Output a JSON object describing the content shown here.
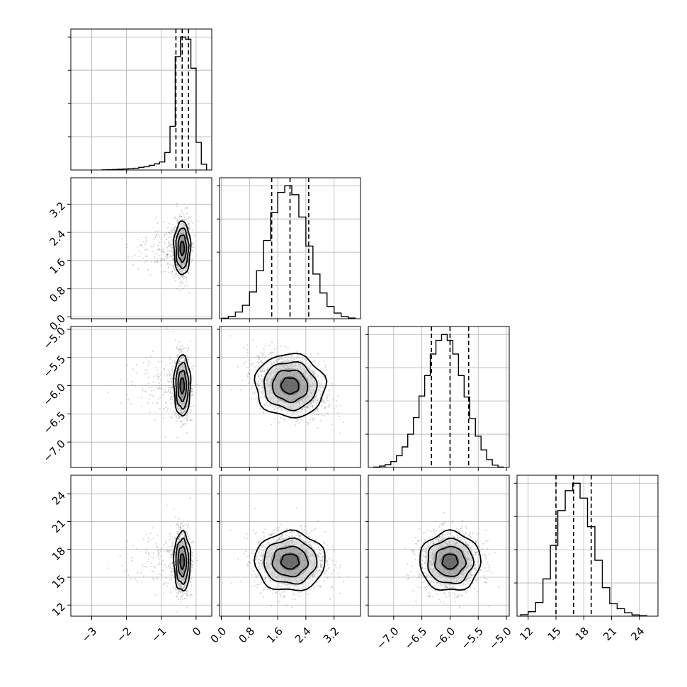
{
  "chart_data": {
    "type": "corner",
    "parameters": [
      {
        "xlim": [
          -3.6,
          0.45
        ],
        "ticks": [
          -3,
          -2,
          -1,
          0
        ],
        "tick_labels": [
          "−3",
          "−2",
          "−1",
          "0"
        ],
        "histogram": {
          "edges": [
            -2.7,
            -2.55,
            -2.4,
            -2.25,
            -2.1,
            -1.95,
            -1.8,
            -1.65,
            -1.5,
            -1.35,
            -1.2,
            -1.05,
            -0.9,
            -0.75,
            -0.6,
            -0.45,
            -0.3,
            -0.15,
            0.0,
            0.15,
            0.3
          ],
          "counts": [
            1,
            2,
            3,
            5,
            7,
            9,
            12,
            18,
            22,
            32,
            42,
            55,
            120,
            300,
            780,
            915,
            900,
            700,
            190,
            40
          ]
        },
        "quantiles": [
          -0.58,
          -0.4,
          -0.22
        ]
      },
      {
        "xlim": [
          -0.05,
          3.95
        ],
        "ticks": [
          0.0,
          0.8,
          1.6,
          2.4,
          3.2
        ],
        "tick_labels": [
          "0.0",
          "0.8",
          "1.6",
          "2.4",
          "3.2"
        ],
        "histogram": {
          "edges": [
            0.0,
            0.2,
            0.4,
            0.6,
            0.8,
            1.0,
            1.2,
            1.4,
            1.6,
            1.8,
            2.0,
            2.2,
            2.4,
            2.6,
            2.8,
            3.0,
            3.2,
            3.4,
            3.6,
            3.8
          ],
          "counts": [
            2,
            10,
            30,
            60,
            120,
            215,
            350,
            475,
            565,
            595,
            555,
            455,
            325,
            200,
            115,
            55,
            25,
            10,
            3
          ]
        },
        "quantiles": [
          1.43,
          1.95,
          2.48
        ]
      },
      {
        "xlim": [
          -7.45,
          -4.95
        ],
        "ticks": [
          -7.0,
          -6.5,
          -6.0,
          -5.5,
          -5.0
        ],
        "tick_labels": [
          "−7.0",
          "−6.5",
          "−6.0",
          "−5.5",
          "−5.0"
        ],
        "histogram": {
          "edges": [
            -7.35,
            -7.25,
            -7.15,
            -7.05,
            -6.95,
            -6.85,
            -6.75,
            -6.65,
            -6.55,
            -6.45,
            -6.35,
            -6.25,
            -6.15,
            -6.05,
            -5.95,
            -5.85,
            -5.75,
            -5.65,
            -5.55,
            -5.45,
            -5.35,
            -5.25,
            -5.15,
            -5.05
          ],
          "counts": [
            2,
            7,
            14,
            30,
            60,
            105,
            170,
            255,
            365,
            470,
            580,
            650,
            680,
            650,
            580,
            470,
            360,
            250,
            160,
            90,
            40,
            12,
            2
          ]
        },
        "quantiles": [
          -6.33,
          -6.0,
          -5.67
        ]
      },
      {
        "xlim": [
          10.8,
          26.0
        ],
        "ticks": [
          12,
          15,
          18,
          21,
          24
        ],
        "tick_labels": [
          "12",
          "15",
          "18",
          "21",
          "24"
        ],
        "histogram": {
          "edges": [
            11.2,
            12.0,
            12.8,
            13.6,
            14.4,
            15.2,
            16.0,
            16.8,
            17.6,
            18.4,
            19.2,
            20.0,
            20.8,
            21.6,
            22.4,
            23.2,
            24.0,
            24.8
          ],
          "counts": [
            6,
            18,
            55,
            150,
            285,
            425,
            505,
            535,
            475,
            360,
            225,
            115,
            50,
            30,
            14,
            5,
            2
          ]
        },
        "quantiles": [
          15.0,
          16.9,
          18.8
        ]
      }
    ],
    "pairs": [
      {
        "row": 1,
        "col": 0,
        "mean": [
          -0.4,
          1.95
        ],
        "sd": [
          0.12,
          0.38
        ],
        "rho": 0.0
      },
      {
        "row": 2,
        "col": 0,
        "mean": [
          -0.4,
          -6.0
        ],
        "sd": [
          0.12,
          0.27
        ],
        "rho": 0.0
      },
      {
        "row": 2,
        "col": 1,
        "mean": [
          1.95,
          -6.0
        ],
        "sd": [
          0.5,
          0.28
        ],
        "rho": -0.35
      },
      {
        "row": 3,
        "col": 0,
        "mean": [
          -0.4,
          16.7
        ],
        "sd": [
          0.12,
          1.6
        ],
        "rho": 0.0
      },
      {
        "row": 3,
        "col": 1,
        "mean": [
          1.95,
          16.7
        ],
        "sd": [
          0.5,
          1.6
        ],
        "rho": 0.0
      },
      {
        "row": 3,
        "col": 2,
        "mean": [
          -6.0,
          16.7
        ],
        "sd": [
          0.27,
          1.6
        ],
        "rho": 0.0
      }
    ],
    "contour_levels_sigma": [
      0.5,
      1.0,
      1.5,
      2.0
    ],
    "grid": true,
    "colors": {
      "lines": "#000000",
      "points": "#555555",
      "grid": "#b0b0b0"
    }
  }
}
